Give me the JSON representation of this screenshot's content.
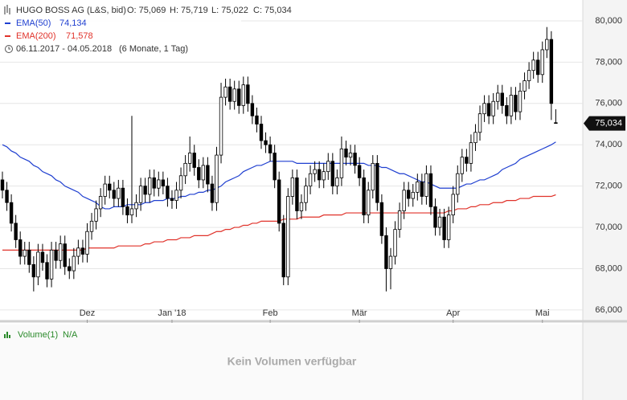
{
  "chart_data": {
    "type": "candlestick",
    "title": "HUGO BOSS AG (L&S, bid)",
    "ohlc_labels": [
      "O: 75,069",
      "H: 75,719",
      "L: 75,022",
      "C: 75,034"
    ],
    "date_range": "06.11.2017 - 04.05.2018",
    "period": "(6 Monate, 1 Tag)",
    "last_price_label": "75,034",
    "last_price": 75.034,
    "up_color": "#ffffff",
    "down_color": "#000000",
    "open": [
      72.3,
      71.8,
      71.2,
      70.2,
      69.4,
      68.6,
      68.9,
      68.2,
      67.6,
      68.8,
      68.3,
      67.5,
      68.9,
      68.4,
      69.2,
      68.1,
      67.9,
      68.6,
      69.0,
      68.7,
      69.8,
      70.3,
      70.9,
      71.5,
      72.1,
      71.8,
      71.4,
      71.9,
      71.0,
      70.6,
      70.9,
      71.2,
      72.0,
      71.6,
      72.4,
      71.9,
      72.3,
      72.0,
      71.4,
      71.3,
      71.8,
      72.5,
      73.1,
      73.6,
      72.9,
      72.3,
      73.0,
      72.1,
      71.2,
      73.5,
      76.3,
      76.8,
      76.1,
      76.7,
      75.9,
      76.9,
      76.0,
      75.4,
      75.0,
      74.2,
      74.0,
      73.6,
      72.3,
      70.2,
      67.6,
      71.5,
      72.4,
      70.8,
      71.2,
      72.0,
      72.6,
      72.8,
      72.3,
      72.7,
      73.2,
      72.0,
      72.4,
      73.8,
      73.4,
      73.6,
      73.0,
      72.4,
      70.6,
      71.8,
      73.1,
      71.2,
      69.6,
      68.0,
      68.6,
      69.9,
      70.8,
      71.8,
      71.4,
      71.7,
      72.2,
      71.5,
      72.6,
      71.0,
      70.0,
      70.5,
      69.4,
      70.6,
      71.6,
      72.6,
      73.4,
      73.1,
      74.1,
      74.6,
      75.5,
      76.0,
      75.4,
      76.1,
      76.5,
      75.9,
      75.4,
      76.4,
      75.6,
      76.6,
      77.1,
      77.6,
      78.1,
      77.4,
      78.6,
      79.1,
      75.069
    ],
    "high": [
      72.7,
      72.2,
      71.6,
      70.6,
      69.8,
      69.3,
      69.3,
      68.6,
      69.2,
      69.2,
      68.7,
      69.3,
      69.3,
      69.6,
      69.6,
      68.5,
      69.0,
      69.4,
      69.4,
      70.2,
      70.7,
      71.3,
      71.9,
      72.5,
      72.5,
      72.2,
      72.3,
      72.3,
      71.4,
      75.4,
      71.6,
      72.4,
      72.4,
      72.8,
      72.8,
      72.7,
      72.7,
      72.4,
      71.8,
      72.2,
      72.9,
      73.5,
      74.4,
      74.0,
      73.3,
      73.4,
      73.4,
      72.5,
      73.9,
      77.0,
      77.2,
      77.2,
      77.1,
      77.1,
      77.3,
      77.3,
      76.4,
      75.8,
      75.4,
      74.6,
      74.4,
      74.0,
      72.7,
      70.6,
      71.9,
      72.8,
      72.8,
      71.6,
      72.4,
      73.0,
      73.2,
      73.2,
      73.1,
      73.6,
      73.6,
      72.8,
      74.4,
      74.2,
      74.0,
      74.0,
      73.4,
      72.8,
      72.2,
      73.5,
      73.5,
      71.6,
      70.0,
      69.0,
      70.3,
      71.2,
      72.2,
      72.2,
      72.1,
      72.6,
      72.6,
      73.0,
      73.0,
      71.4,
      70.9,
      70.9,
      71.0,
      72.0,
      73.0,
      73.8,
      73.8,
      74.5,
      75.0,
      75.9,
      76.4,
      76.4,
      76.5,
      76.9,
      76.9,
      76.3,
      76.8,
      76.8,
      77.0,
      77.5,
      78.0,
      78.5,
      78.5,
      79.0,
      79.7,
      79.5,
      75.719
    ],
    "low": [
      71.4,
      70.8,
      69.8,
      69.0,
      68.2,
      68.2,
      67.8,
      66.9,
      67.2,
      67.9,
      67.1,
      67.1,
      68.0,
      68.0,
      67.7,
      67.5,
      67.5,
      68.2,
      68.3,
      68.3,
      69.4,
      69.9,
      70.5,
      71.1,
      71.4,
      71.0,
      71.0,
      70.6,
      70.2,
      70.2,
      70.5,
      70.8,
      71.2,
      71.2,
      71.5,
      71.5,
      71.6,
      71.0,
      70.9,
      70.9,
      71.4,
      72.1,
      72.7,
      72.5,
      71.9,
      71.9,
      71.7,
      70.8,
      70.8,
      73.1,
      75.9,
      75.7,
      75.7,
      75.5,
      75.5,
      75.6,
      75.0,
      74.6,
      73.8,
      73.6,
      73.2,
      71.9,
      69.8,
      67.2,
      67.2,
      71.1,
      70.4,
      70.4,
      70.8,
      71.6,
      72.2,
      71.9,
      71.9,
      72.3,
      71.6,
      71.6,
      72.0,
      73.0,
      73.0,
      72.6,
      72.0,
      70.2,
      70.2,
      71.4,
      70.8,
      69.2,
      66.9,
      67.0,
      68.2,
      69.5,
      70.4,
      71.0,
      71.0,
      71.3,
      71.1,
      71.1,
      70.6,
      69.6,
      69.6,
      69.0,
      69.0,
      70.2,
      71.2,
      72.2,
      72.7,
      72.7,
      73.7,
      74.2,
      75.1,
      75.0,
      75.0,
      75.7,
      75.5,
      75.0,
      75.0,
      75.2,
      75.2,
      76.2,
      76.7,
      77.2,
      77.0,
      77.0,
      78.2,
      75.2,
      75.022
    ],
    "close": [
      71.8,
      71.2,
      70.2,
      69.4,
      68.6,
      68.9,
      68.2,
      67.6,
      68.8,
      68.3,
      67.5,
      68.9,
      68.4,
      69.2,
      68.1,
      67.9,
      68.6,
      69.0,
      68.7,
      69.8,
      70.3,
      70.9,
      71.5,
      72.1,
      71.8,
      71.4,
      71.9,
      71.0,
      70.6,
      70.9,
      71.2,
      72.0,
      71.6,
      72.4,
      71.9,
      72.3,
      72.0,
      71.4,
      71.3,
      71.8,
      72.5,
      73.1,
      73.6,
      72.9,
      72.3,
      73.0,
      72.1,
      71.2,
      73.5,
      76.3,
      76.8,
      76.1,
      76.7,
      75.9,
      76.9,
      76.0,
      75.4,
      75.0,
      74.2,
      74.0,
      73.6,
      72.3,
      70.2,
      67.6,
      71.5,
      72.4,
      70.8,
      71.2,
      72.0,
      72.6,
      72.8,
      72.3,
      72.7,
      73.2,
      72.0,
      72.4,
      73.8,
      73.4,
      73.6,
      73.0,
      72.4,
      70.6,
      71.8,
      73.1,
      71.2,
      69.6,
      68.0,
      68.6,
      69.9,
      70.8,
      71.8,
      71.4,
      71.7,
      72.2,
      71.5,
      72.6,
      71.0,
      70.0,
      70.5,
      69.4,
      70.6,
      71.6,
      72.6,
      73.4,
      73.1,
      74.1,
      74.6,
      75.5,
      76.0,
      75.4,
      76.1,
      76.5,
      75.9,
      75.4,
      76.4,
      75.6,
      76.6,
      77.1,
      77.6,
      78.1,
      77.4,
      78.6,
      79.1,
      76.0,
      75.034
    ],
    "series": [
      {
        "name": "EMA(50)",
        "color": "#1f3fd0",
        "value_label": "74,134",
        "values": [
          74.0,
          73.9,
          73.7,
          73.6,
          73.4,
          73.3,
          73.2,
          73.0,
          72.9,
          72.7,
          72.6,
          72.5,
          72.3,
          72.2,
          72.0,
          71.9,
          71.8,
          71.7,
          71.5,
          71.4,
          71.3,
          71.2,
          71.0,
          70.9,
          70.9,
          71.0,
          71.0,
          71.0,
          71.1,
          71.1,
          71.1,
          71.1,
          71.2,
          71.2,
          71.3,
          71.3,
          71.3,
          71.4,
          71.4,
          71.4,
          71.5,
          71.5,
          71.6,
          71.6,
          71.7,
          71.7,
          71.8,
          71.8,
          71.9,
          72.0,
          72.2,
          72.3,
          72.4,
          72.5,
          72.7,
          72.8,
          72.9,
          73.0,
          73.0,
          73.1,
          73.2,
          73.2,
          73.2,
          73.2,
          73.2,
          73.2,
          73.1,
          73.1,
          73.1,
          73.1,
          73.1,
          73.1,
          73.1,
          73.1,
          73.1,
          73.1,
          73.1,
          73.1,
          73.1,
          73.1,
          73.1,
          73.1,
          73.0,
          73.0,
          73.0,
          72.9,
          72.9,
          72.8,
          72.7,
          72.6,
          72.6,
          72.5,
          72.4,
          72.3,
          72.2,
          72.2,
          72.1,
          72.0,
          71.9,
          71.9,
          71.9,
          71.9,
          71.9,
          72.0,
          72.1,
          72.1,
          72.2,
          72.3,
          72.3,
          72.4,
          72.5,
          72.6,
          72.8,
          72.9,
          73.0,
          73.1,
          73.3,
          73.4,
          73.5,
          73.6,
          73.7,
          73.8,
          73.9,
          74.0,
          74.134
        ]
      },
      {
        "name": "EMA(200)",
        "color": "#e0322a",
        "value_label": "71,578",
        "values": [
          68.9,
          68.9,
          68.9,
          68.9,
          68.9,
          68.9,
          68.9,
          68.9,
          68.9,
          68.9,
          68.9,
          68.9,
          68.9,
          68.9,
          68.9,
          68.9,
          68.9,
          68.9,
          68.9,
          69.0,
          69.0,
          69.0,
          69.0,
          69.0,
          69.0,
          69.0,
          69.1,
          69.1,
          69.1,
          69.1,
          69.1,
          69.1,
          69.2,
          69.2,
          69.3,
          69.3,
          69.3,
          69.4,
          69.4,
          69.4,
          69.5,
          69.5,
          69.5,
          69.6,
          69.6,
          69.6,
          69.6,
          69.7,
          69.8,
          69.8,
          69.9,
          69.9,
          70.0,
          70.0,
          70.1,
          70.1,
          70.2,
          70.2,
          70.3,
          70.3,
          70.3,
          70.3,
          70.3,
          70.4,
          70.4,
          70.4,
          70.4,
          70.5,
          70.5,
          70.5,
          70.5,
          70.5,
          70.6,
          70.6,
          70.6,
          70.6,
          70.6,
          70.7,
          70.7,
          70.7,
          70.7,
          70.7,
          70.7,
          70.7,
          70.7,
          70.7,
          70.7,
          70.7,
          70.7,
          70.7,
          70.7,
          70.7,
          70.7,
          70.7,
          70.7,
          70.7,
          70.7,
          70.7,
          70.7,
          70.7,
          70.8,
          70.8,
          70.9,
          70.9,
          70.9,
          71.0,
          71.0,
          71.1,
          71.1,
          71.1,
          71.2,
          71.2,
          71.2,
          71.3,
          71.3,
          71.3,
          71.4,
          71.4,
          71.4,
          71.5,
          71.5,
          71.5,
          71.5,
          71.5,
          71.578
        ]
      }
    ],
    "xlim": [
      -0.54,
      130.05
    ],
    "xticks": [
      {
        "value": 19,
        "label": "Dez"
      },
      {
        "value": 38,
        "label": "Jan '18"
      },
      {
        "value": 60,
        "label": "Feb"
      },
      {
        "value": 80,
        "label": "Mär"
      },
      {
        "value": 101,
        "label": "Apr"
      },
      {
        "value": 121,
        "label": "Mai"
      }
    ],
    "ylim": [
      65.53,
      81.01
    ],
    "yticks": [
      {
        "value": 66,
        "label": "66,000"
      },
      {
        "value": 68,
        "label": "68,000"
      },
      {
        "value": 70,
        "label": "70,000"
      },
      {
        "value": 72,
        "label": "72,000"
      },
      {
        "value": 74,
        "label": "74,000"
      },
      {
        "value": 76,
        "label": "76,000"
      },
      {
        "value": 78,
        "label": "78,000"
      },
      {
        "value": 80,
        "label": "80,000"
      }
    ],
    "grid": true
  },
  "volume_panel": {
    "title": "Volume(1)",
    "value": "N/A",
    "message": "Kein Volumen verfügbar"
  }
}
